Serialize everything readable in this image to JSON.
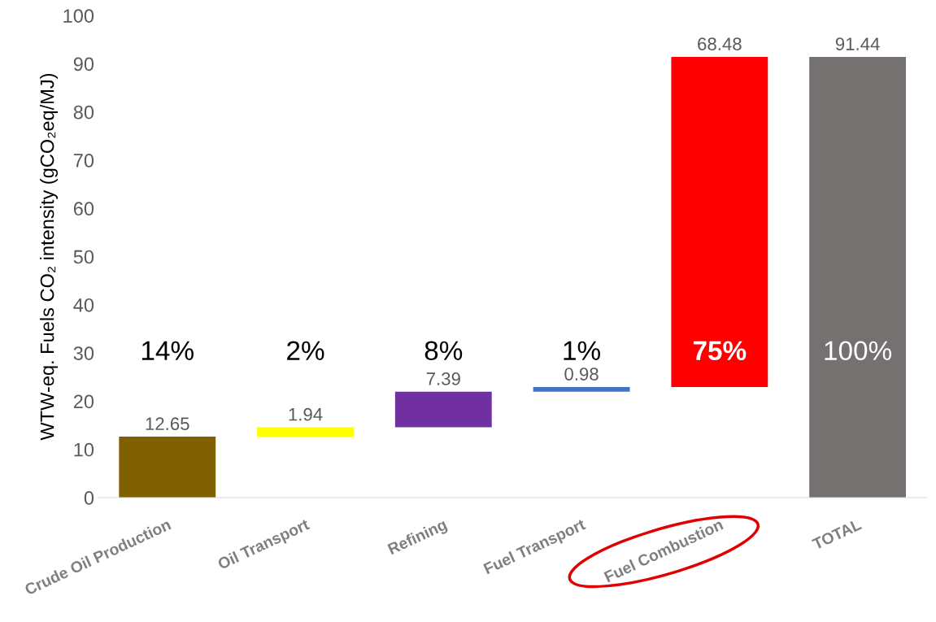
{
  "chart_data": {
    "type": "bar",
    "ylabel": "WTW-eq. Fuels CO₂ intensity (gCO₂eq/MJ)",
    "categories": [
      "Crude Oil Production",
      "Oil Transport",
      "Refining",
      "Fuel Transport",
      "Fuel Combustion",
      "TOTAL"
    ],
    "values": [
      12.65,
      1.94,
      7.39,
      0.98,
      68.48,
      91.44
    ],
    "base": [
      0,
      12.65,
      14.59,
      21.98,
      22.96,
      0
    ],
    "colors": [
      "#7f6000",
      "#ffff00",
      "#7030a0",
      "#4472c4",
      "#ff0000",
      "#767171"
    ],
    "data_labels": true,
    "ylim": [
      0,
      100
    ],
    "yticks": [
      0,
      10,
      20,
      30,
      40,
      50,
      60,
      70,
      80,
      90,
      100
    ],
    "grid": false,
    "annotations": [
      "14%",
      "2%",
      "8%",
      "1%",
      "75%",
      "100%"
    ]
  }
}
